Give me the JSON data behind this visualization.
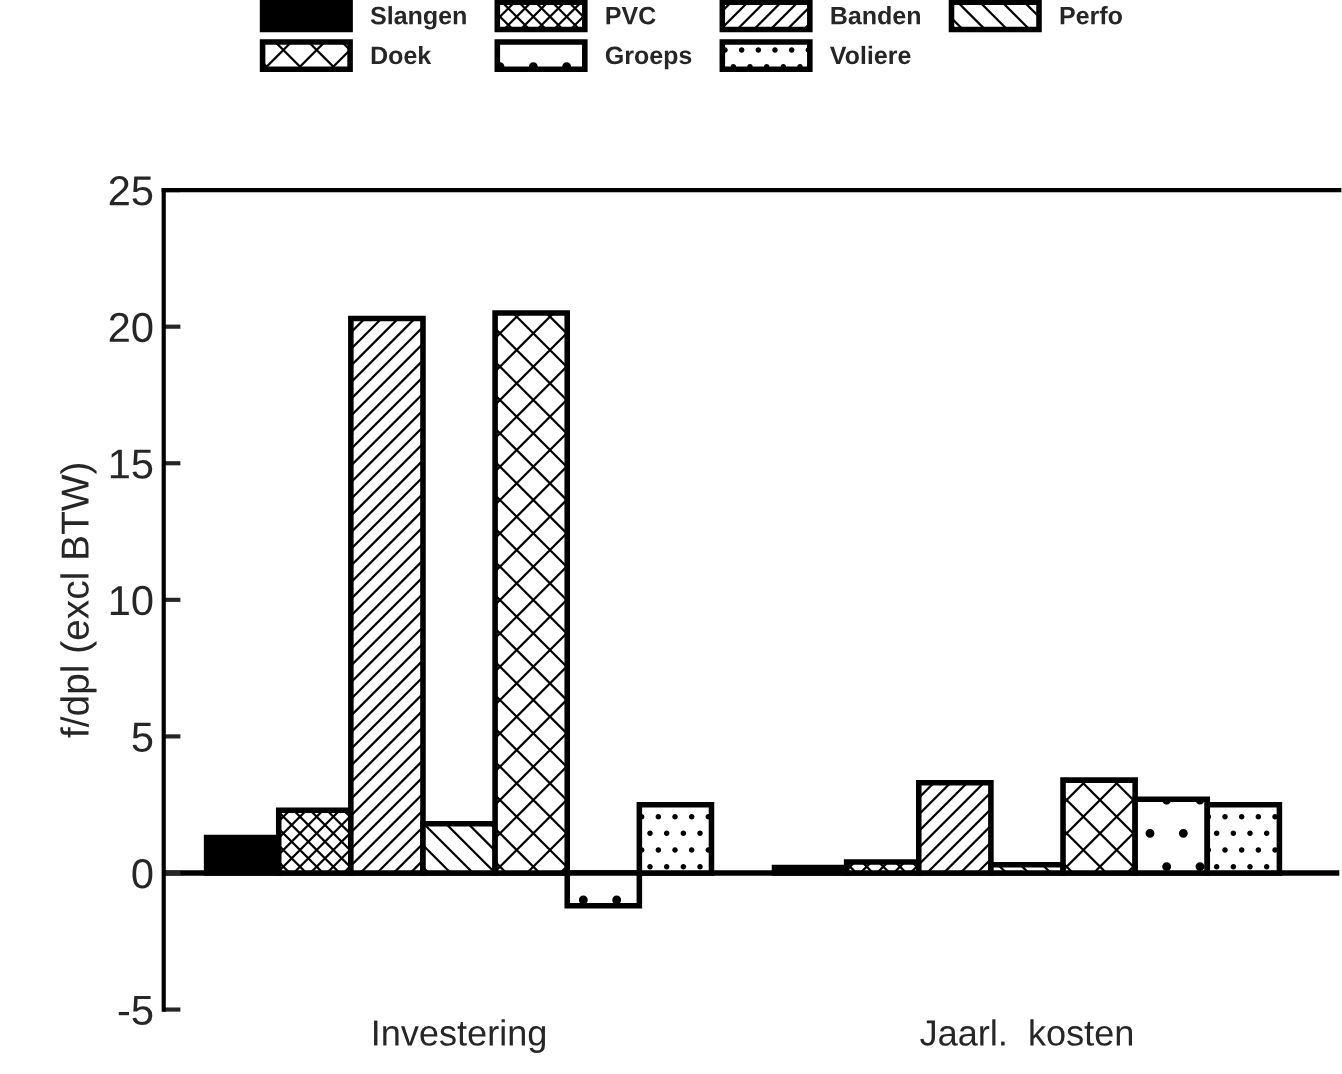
{
  "chart_data": {
    "type": "bar",
    "ylabel": "f/dpl (excl BTW)",
    "categories": [
      "Investering",
      "Jaarl.  kosten"
    ],
    "series": [
      {
        "name": "Slangen",
        "color": "#000000",
        "values": [
          1.3,
          0.2
        ]
      },
      {
        "name": "PVC",
        "color": "#000000",
        "values": [
          2.3,
          0.4
        ]
      },
      {
        "name": "Banden",
        "color": "#000000",
        "values": [
          20.3,
          3.3
        ]
      },
      {
        "name": "Perfo",
        "color": "#000000",
        "values": [
          1.8,
          0.3
        ]
      },
      {
        "name": "Doek",
        "color": "#000000",
        "values": [
          20.5,
          3.4
        ]
      },
      {
        "name": "Groeps",
        "color": "#000000",
        "values": [
          -1.2,
          2.7
        ]
      },
      {
        "name": "Voliere",
        "color": "#000000",
        "values": [
          2.5,
          2.5
        ]
      }
    ],
    "ylim": [
      -5,
      25
    ],
    "yticks": [
      -5,
      0,
      5,
      10,
      15,
      20,
      25
    ],
    "ref_lines": [
      {
        "axis": "y",
        "value": 0
      }
    ],
    "grid": false,
    "legend": "top"
  }
}
